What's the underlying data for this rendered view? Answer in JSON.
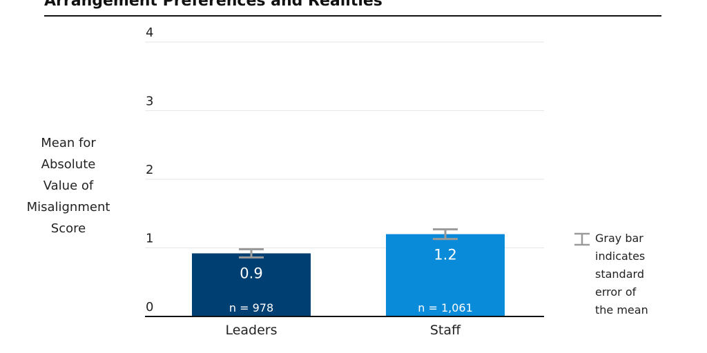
{
  "title": "Arrangement Preferences and Realities",
  "ylabel_lines": [
    "Mean for",
    "Absolute",
    "Value of",
    "Misalignment",
    "Score"
  ],
  "legend": {
    "lines": [
      "Gray bar",
      "indicates",
      "standard",
      "error of",
      "the mean"
    ]
  },
  "colors": {
    "leaders": "#003f72",
    "staff": "#0a8bd9",
    "error_bar": "#9a9a9a",
    "grid": "#e6e6e6",
    "axis": "#111111"
  },
  "chart_data": {
    "type": "bar",
    "title": "Arrangement Preferences and Realities",
    "ylabel": "Mean for Absolute Value of Misalignment Score",
    "xlabel": "",
    "categories": [
      "Leaders",
      "Staff"
    ],
    "values": [
      0.92,
      1.2
    ],
    "value_labels": [
      "0.9",
      "1.2"
    ],
    "n_labels": [
      "n = 978",
      "n = 1,061"
    ],
    "error": [
      0.06,
      0.07
    ],
    "ylim": [
      0,
      4
    ],
    "yticks": [
      0,
      1,
      2,
      3,
      4
    ],
    "grid": true,
    "legend_position": "right"
  }
}
